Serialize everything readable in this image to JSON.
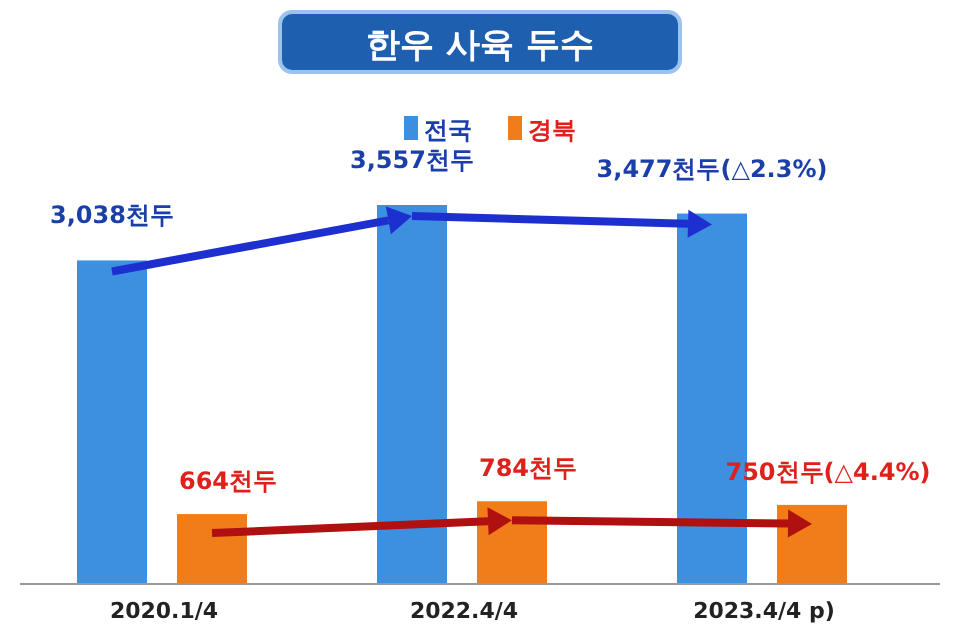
{
  "chart_data": {
    "type": "bar",
    "title": "한우 사육 두수",
    "categories": [
      "2020.1/4",
      "2022.4/4",
      "2023.4/4 p)"
    ],
    "legend": "top",
    "series": [
      {
        "name": "전국",
        "color": "#3d8fe0",
        "values": [
          3038,
          3557,
          3477
        ],
        "value_labels": [
          "3,038천두",
          "3,557천두",
          "3,477천두(△2.3%)"
        ]
      },
      {
        "name": "경북",
        "color": "#f07d1a",
        "values": [
          664,
          784,
          750
        ],
        "value_labels": [
          "664천두",
          "784천두",
          "750천두(△4.4%)"
        ]
      }
    ]
  }
}
